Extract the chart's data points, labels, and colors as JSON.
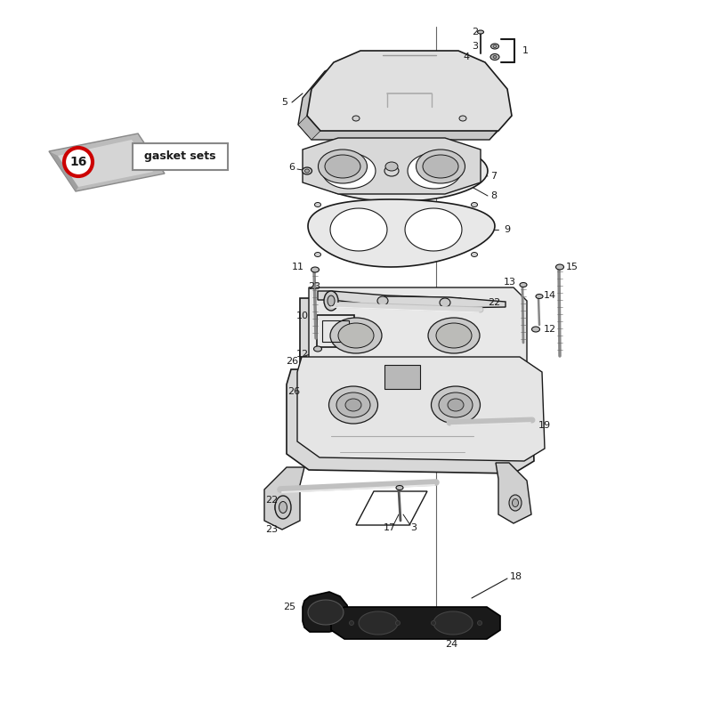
{
  "bg_color": "#ffffff",
  "lc": "#1a1a1a",
  "part_fill": "#e8e8e8",
  "dark_fill": "#1a1a1a",
  "gray_fill": "#d0d0d0",
  "light_fill": "#f0f0f0",
  "red": "#cc0000",
  "label_16": "16",
  "gasket_label": "gasket sets",
  "figsize": [
    8.0,
    8.0
  ],
  "dpi": 100
}
